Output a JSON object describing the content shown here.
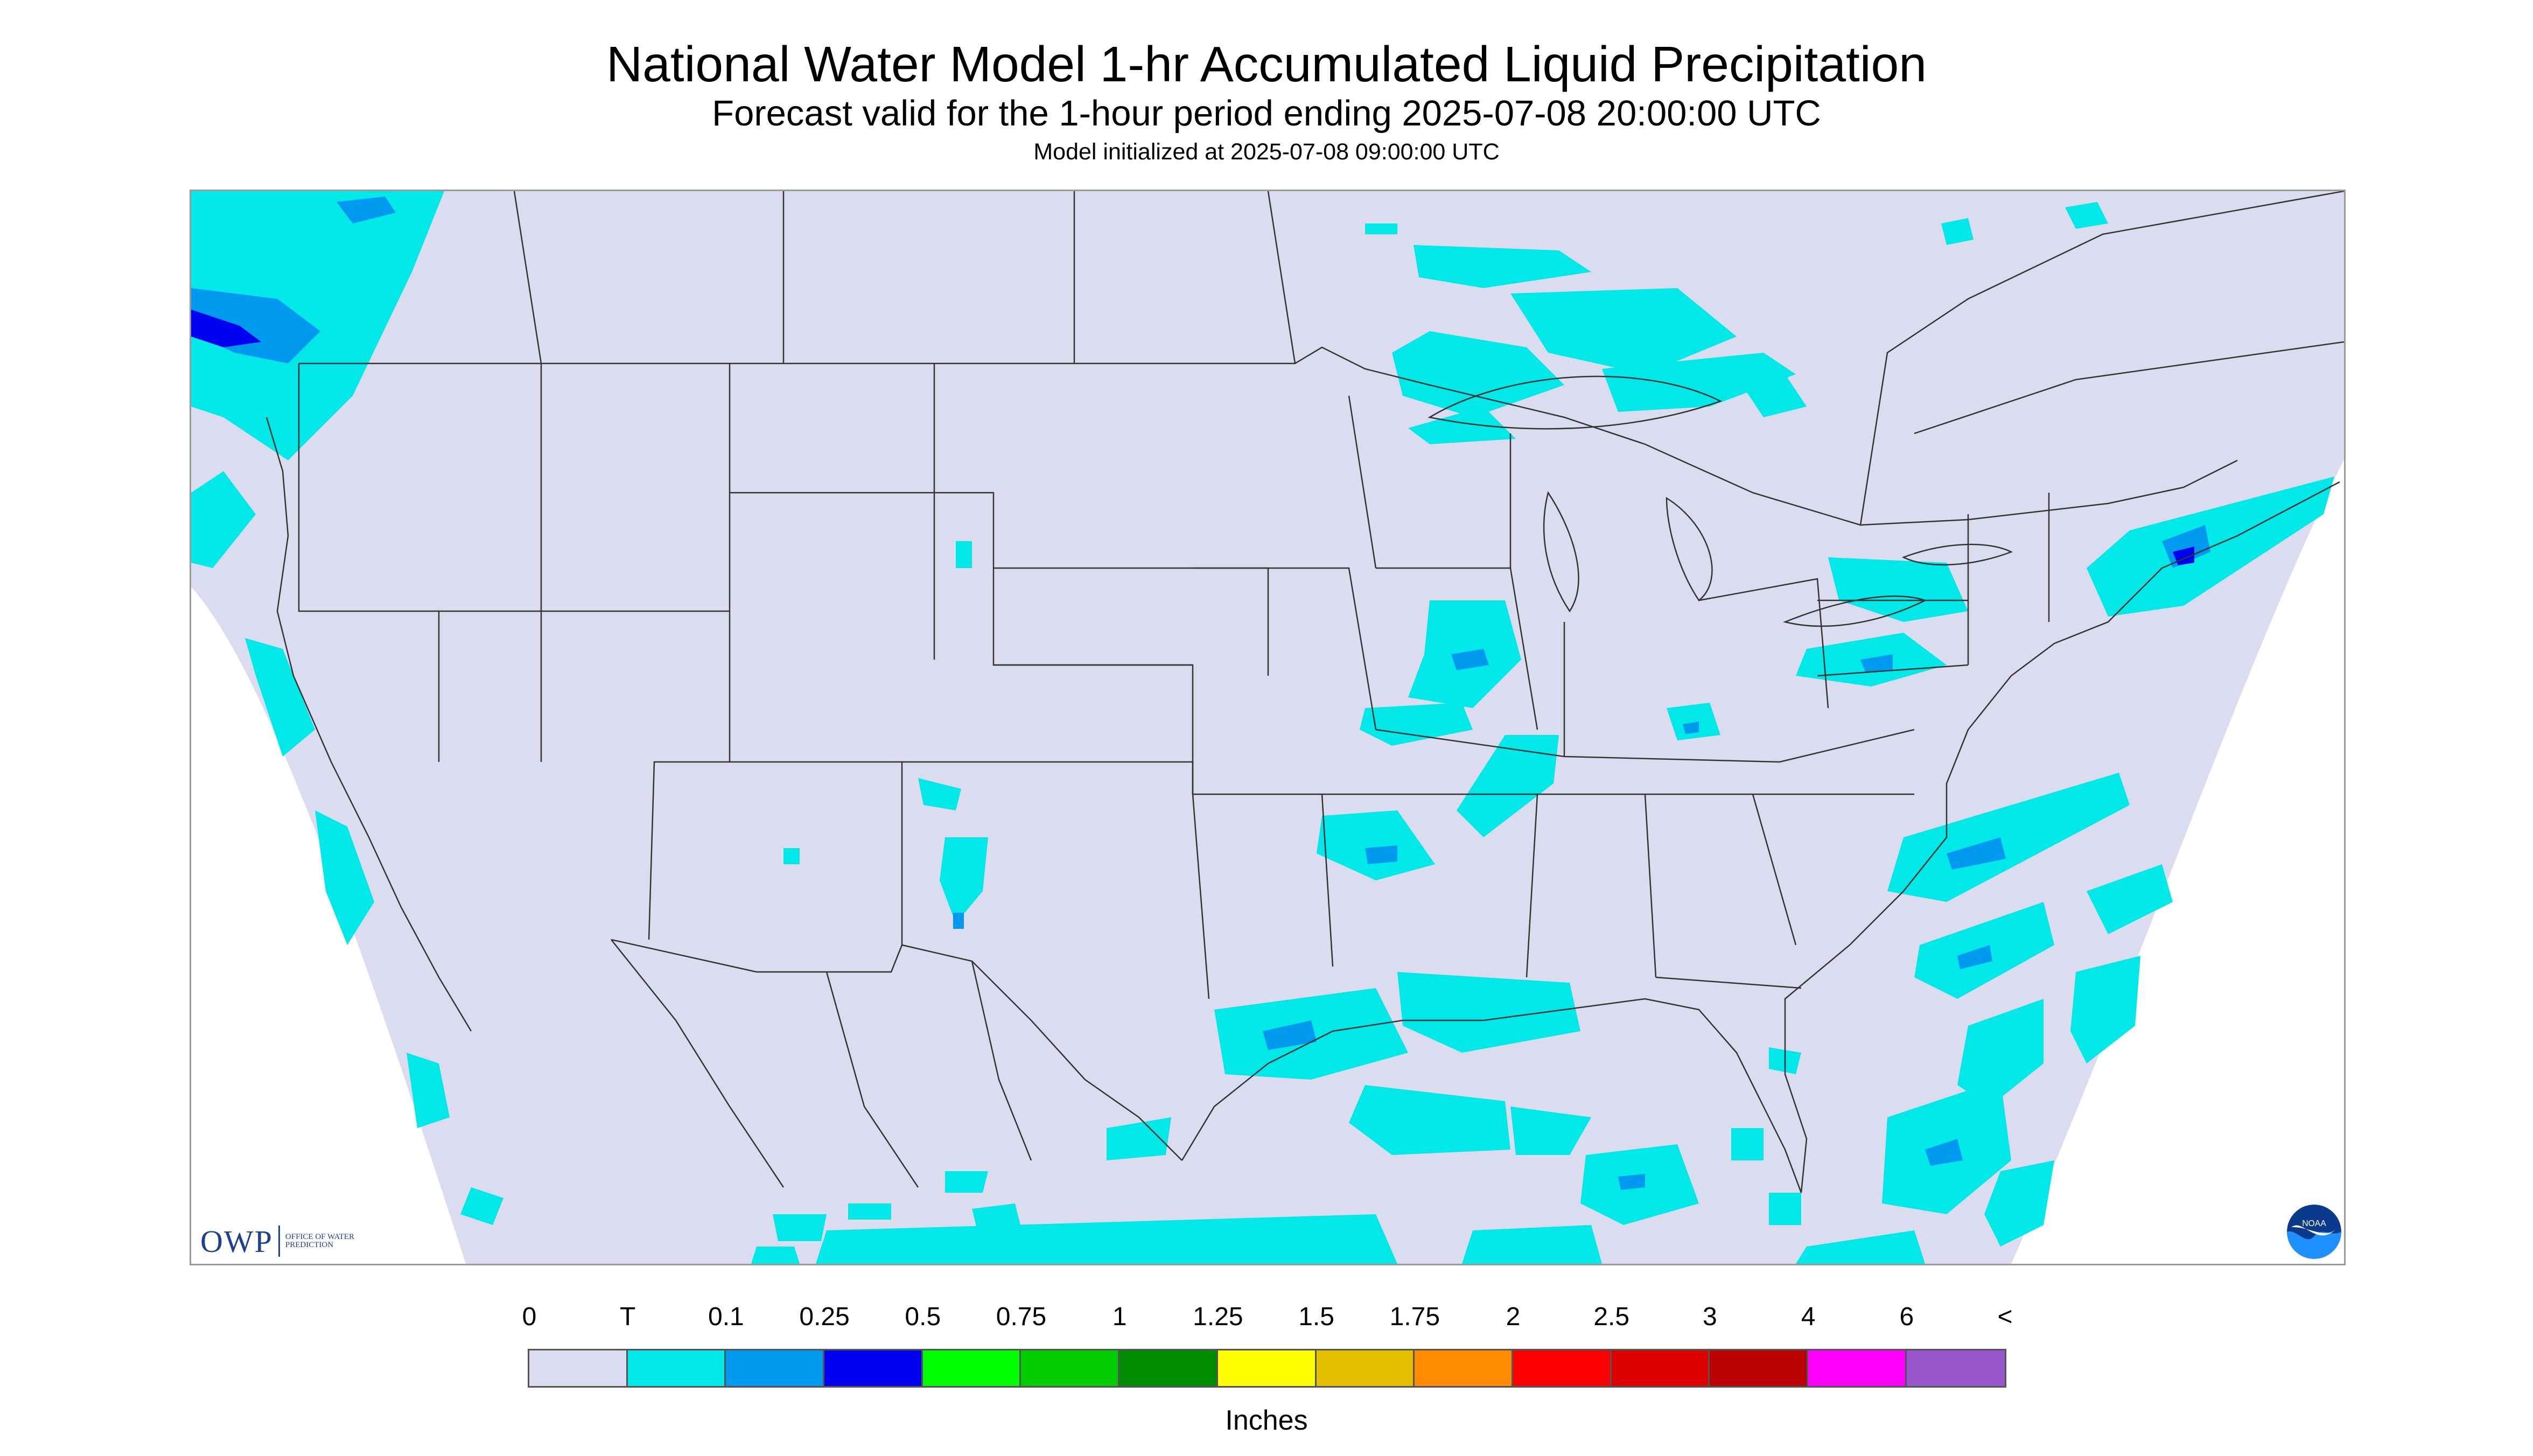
{
  "title": "National Water Model 1-hr Accumulated Liquid Precipitation",
  "subtitle": "Forecast valid for the 1-hour period ending 2025-07-08 20:00:00 UTC",
  "model_init": "Model initialized at 2025-07-08 09:00:00 UTC",
  "logos": {
    "owp_abbrev": "OWP",
    "owp_full": "OFFICE OF WATER PREDICTION",
    "noaa": "NOAA"
  },
  "legend": {
    "unit": "Inches",
    "labels": [
      "0",
      "T",
      "0.1",
      "0.25",
      "0.5",
      "0.75",
      "1",
      "1.25",
      "1.5",
      "1.75",
      "2",
      "2.5",
      "3",
      "4",
      "6",
      "<"
    ],
    "colors": [
      "#dcdcf0",
      "#00e8e8",
      "#0099f0",
      "#0000f0",
      "#00ff00",
      "#00cc00",
      "#008c00",
      "#ffff00",
      "#e6be00",
      "#ff8c00",
      "#ff0000",
      "#dd0000",
      "#bb0000",
      "#ff00ff",
      "#9955cc"
    ]
  },
  "map": {
    "background_color": "#dcdcf0",
    "border_color": "#333333",
    "precip_colors": {
      "trace": "#00e8e8",
      "light": "#0099f0",
      "moderate": "#0000f0"
    }
  }
}
